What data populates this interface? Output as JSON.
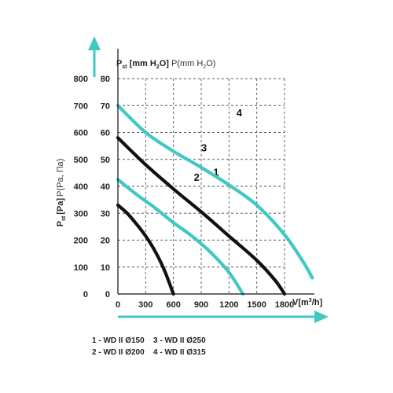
{
  "chart_data": {
    "type": "line",
    "y_title_main": "P",
    "y_title_sub": "st",
    "y_title_bracket": "[Pa]",
    "y_title_light": "P(Pa, Па)",
    "top_title_main": "P",
    "top_title_sub": "st",
    "top_title_bracket": "[mm H",
    "top_title_bracket_sub": "2",
    "top_title_bracket_end": "O]",
    "top_title_light": "P(mm H",
    "top_title_light_sub": "2",
    "top_title_light_end": "O)",
    "x_title": "V[m",
    "x_title_sup": "3",
    "x_title_end": "/h]",
    "x_ticks": [
      0,
      300,
      600,
      900,
      1200,
      1500,
      1800
    ],
    "y_pa_ticks": [
      0,
      100,
      200,
      300,
      400,
      500,
      600,
      700,
      800
    ],
    "y_mm_ticks": [
      0,
      10,
      20,
      30,
      40,
      50,
      60,
      70,
      80
    ],
    "xlim": [
      0,
      2100
    ],
    "ylim": [
      0,
      800
    ],
    "grid": true,
    "colors": {
      "black": "#111111",
      "cyan": "#3ec9c4",
      "axis": "#111111"
    },
    "series": [
      {
        "name": "1",
        "color": "#111111",
        "label_at": [
          1030,
          440
        ],
        "points": [
          [
            0,
            330
          ],
          [
            100,
            300
          ],
          [
            200,
            260
          ],
          [
            300,
            215
          ],
          [
            400,
            160
          ],
          [
            500,
            90
          ],
          [
            600,
            0
          ]
        ]
      },
      {
        "name": "2",
        "color": "#3ec9c4",
        "label_at": [
          820,
          420
        ],
        "points": [
          [
            0,
            425
          ],
          [
            200,
            370
          ],
          [
            400,
            320
          ],
          [
            600,
            265
          ],
          [
            800,
            215
          ],
          [
            1000,
            155
          ],
          [
            1200,
            80
          ],
          [
            1350,
            0
          ]
        ]
      },
      {
        "name": "3",
        "color": "#111111",
        "label_at": [
          900,
          530
        ],
        "points": [
          [
            0,
            580
          ],
          [
            300,
            480
          ],
          [
            600,
            390
          ],
          [
            900,
            305
          ],
          [
            1200,
            215
          ],
          [
            1500,
            125
          ],
          [
            1700,
            50
          ],
          [
            1800,
            0
          ]
        ]
      },
      {
        "name": "4",
        "color": "#3ec9c4",
        "label_at": [
          1280,
          660
        ],
        "points": [
          [
            0,
            700
          ],
          [
            300,
            600
          ],
          [
            600,
            530
          ],
          [
            900,
            470
          ],
          [
            1200,
            405
          ],
          [
            1500,
            330
          ],
          [
            1800,
            220
          ],
          [
            2000,
            120
          ],
          [
            2100,
            60
          ]
        ]
      }
    ],
    "legend": [
      "1 - WD II Ø150",
      "2 - WD II Ø200",
      "3 - WD II Ø250",
      "4 - WD II Ø315"
    ]
  }
}
